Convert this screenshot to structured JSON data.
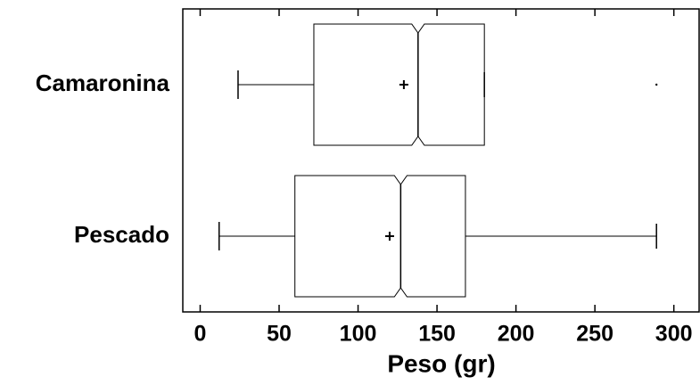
{
  "chart_data": {
    "type": "box",
    "x_label": "Peso (gr)",
    "categories": [
      "Camaronina",
      "Pescado"
    ],
    "boxes": [
      {
        "min": 24,
        "q1": 72,
        "notch_low": 134,
        "median": 138,
        "notch_high": 142,
        "q3": 180,
        "max": 180,
        "mean": 129,
        "outliers": [
          289
        ]
      },
      {
        "min": 12,
        "q1": 60,
        "notch_low": 123,
        "median": 127,
        "notch_high": 131,
        "q3": 168,
        "max": 289,
        "mean": 120,
        "outliers": []
      }
    ],
    "color": "#000000",
    "xlim": [
      -11,
      316
    ],
    "xticks": [
      0,
      50,
      100,
      150,
      200,
      250,
      300
    ]
  }
}
